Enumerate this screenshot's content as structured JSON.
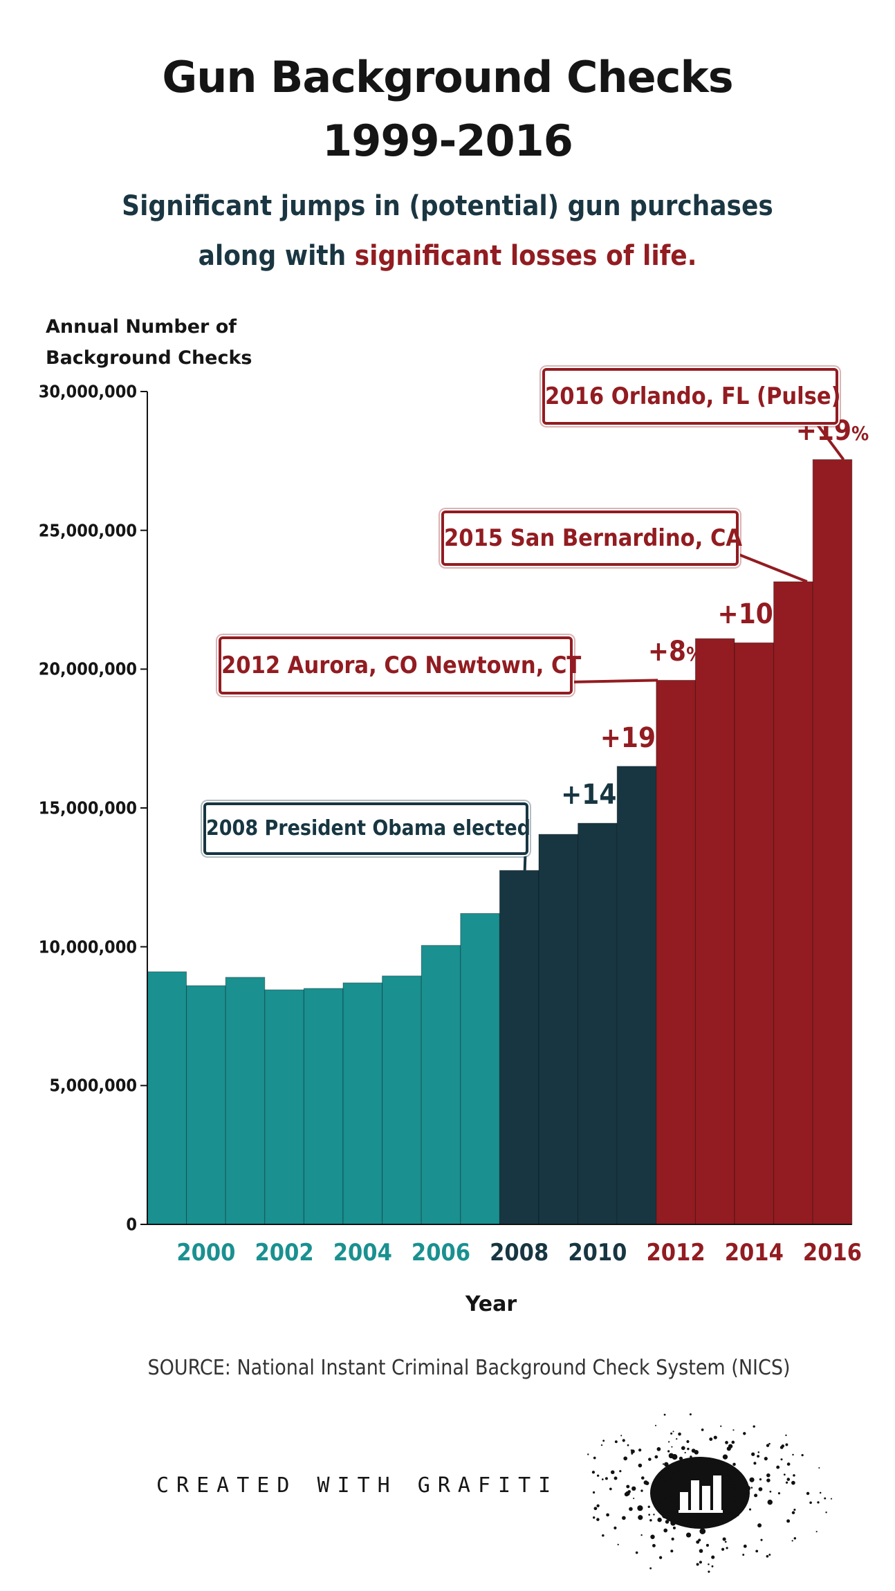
{
  "title": {
    "line1": "Gun Background Checks",
    "line2": "1999-2016"
  },
  "subtitle": {
    "line1": "Significant jumps in (potential) gun purchases",
    "line2_prefix": "along with ",
    "line2_red": "significant losses of life."
  },
  "colors": {
    "teal": "#1a9090",
    "navy": "#173642",
    "red": "#921c21",
    "title": "#151515",
    "subtitle": "#1a3642"
  },
  "chart_data": {
    "type": "bar",
    "title": "Gun Background Checks 1999-2016",
    "xlabel": "Year",
    "ylabel": "Annual Number of Background Checks",
    "ylim": [
      0,
      30000000
    ],
    "yticks": [
      "0",
      "5,000,000",
      "10,000,000",
      "15,000,000",
      "20,000,000",
      "25,000,000",
      "30,000,000"
    ],
    "ytick_values": [
      0,
      5000000,
      10000000,
      15000000,
      20000000,
      25000000,
      30000000
    ],
    "xtick_labels": [
      "2000",
      "2002",
      "2004",
      "2006",
      "2008",
      "2010",
      "2012",
      "2014",
      "2016"
    ],
    "categories": [
      1999,
      2000,
      2001,
      2002,
      2003,
      2004,
      2005,
      2006,
      2007,
      2008,
      2009,
      2010,
      2011,
      2012,
      2013,
      2014,
      2015,
      2016
    ],
    "values": [
      9100000,
      8600000,
      8900000,
      8450000,
      8500000,
      8700000,
      8950000,
      10050000,
      11200000,
      12750000,
      14050000,
      14450000,
      16500000,
      19600000,
      21100000,
      20950000,
      23150000,
      27550000
    ],
    "groups": [
      "teal",
      "teal",
      "teal",
      "teal",
      "teal",
      "teal",
      "teal",
      "teal",
      "teal",
      "navy",
      "navy",
      "navy",
      "navy",
      "red",
      "red",
      "red",
      "red",
      "red"
    ],
    "grid": false,
    "annotations": [
      {
        "text": "+14%",
        "year": 2010,
        "color": "navy"
      },
      {
        "text": "+19%",
        "year": 2011,
        "color": "red"
      },
      {
        "text": "+8%",
        "year": 2012,
        "color": "red"
      },
      {
        "text": "+10%",
        "year": 2014,
        "color": "red"
      },
      {
        "text": "+19%",
        "year": 2016,
        "color": "red"
      }
    ],
    "events": [
      {
        "text": "2008 President Obama elected",
        "year": 2008,
        "color": "navy"
      },
      {
        "text": "2012 Aurora, CO Newtown, CT",
        "year": 2012,
        "color": "red"
      },
      {
        "text": "2015 San Bernardino, CA",
        "year": 2015,
        "color": "red"
      },
      {
        "text": "2016 Orlando, FL (Pulse)",
        "year": 2016,
        "color": "red"
      }
    ]
  },
  "source": "SOURCE: National Instant Criminal Background Check System (NICS)",
  "credit": "CREATED WITH GRAFITI"
}
